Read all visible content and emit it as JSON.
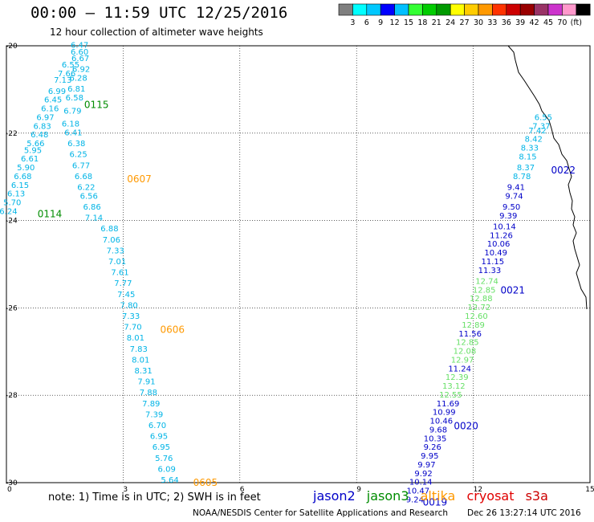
{
  "header": {
    "title": "00:00 – 11:59 UTC 12/25/2016",
    "subtitle": "12 hour collection of altimeter wave heights"
  },
  "colorbar": {
    "colors": [
      "#7f7f7f",
      "#00ffff",
      "#00c8ff",
      "#0000ff",
      "#00bfff",
      "#33ff33",
      "#00cc00",
      "#009900",
      "#ffff00",
      "#ffcc00",
      "#ff9900",
      "#ff3300",
      "#cc0000",
      "#990000",
      "#993366",
      "#cc33cc",
      "#ff99cc",
      "#000000"
    ],
    "labels": [
      "3",
      "6",
      "9",
      "12",
      "15",
      "18",
      "21",
      "24",
      "27",
      "30",
      "33",
      "36",
      "39",
      "42",
      "45",
      "70",
      "(ft)"
    ]
  },
  "axes": {
    "x_ticks": [
      "0",
      "3",
      "6",
      "9",
      "12",
      "15"
    ],
    "y_ticks": [
      "-20",
      "-22",
      "-24",
      "-26",
      "-28",
      "-30"
    ],
    "xlim": [
      0,
      15
    ],
    "ylim": [
      -30,
      -20
    ]
  },
  "satellite_colors": {
    "jason2": "#0000c8",
    "jason3": "#008c00",
    "altika": "#ff9900",
    "cryosat": "#e00000",
    "s3a": "#e00000",
    "swh_light": "#00b4e6",
    "swh_green": "#66e066",
    "swh_blue": "#0000c8"
  },
  "tracks": [
    {
      "id": "0115",
      "sat": "jason3",
      "label_pos": [
        2.0,
        -21.35
      ],
      "points": [
        [
          1.88,
          -20.05,
          "6.47",
          "swh_light"
        ],
        [
          1.88,
          -20.2,
          "6.60",
          "swh_light"
        ],
        [
          1.9,
          -20.35,
          "6.67",
          "swh_light"
        ],
        [
          1.65,
          -20.5,
          "6.55",
          "swh_light"
        ],
        [
          1.92,
          -20.6,
          "6.92",
          "swh_light"
        ],
        [
          1.55,
          -20.7,
          "7.66",
          "swh_light"
        ],
        [
          1.85,
          -20.8,
          "6.28",
          "swh_light"
        ],
        [
          1.45,
          -20.85,
          "7.13",
          "swh_light"
        ],
        [
          1.8,
          -21.05,
          "6.81",
          "swh_light"
        ],
        [
          1.3,
          -21.1,
          "6.99",
          "swh_light"
        ],
        [
          1.75,
          -21.25,
          "6.58",
          "swh_light"
        ],
        [
          1.2,
          -21.3,
          "6.45",
          "swh_light"
        ],
        [
          1.7,
          -21.55,
          "6.79",
          "swh_light"
        ],
        [
          1.12,
          -21.5,
          "6.16",
          "swh_light"
        ],
        [
          1.0,
          -21.7,
          "6.97",
          "swh_light"
        ],
        [
          1.65,
          -21.85,
          "6.18",
          "swh_light"
        ],
        [
          0.92,
          -21.9,
          "6.83",
          "swh_light"
        ],
        [
          1.72,
          -22.05,
          "6.41",
          "swh_light"
        ],
        [
          0.85,
          -22.1,
          "6.48",
          "swh_light"
        ],
        [
          0.75,
          -22.3,
          "5.66",
          "swh_light"
        ],
        [
          1.8,
          -22.3,
          "6.38",
          "swh_light"
        ],
        [
          0.68,
          -22.45,
          "5.95",
          "swh_light"
        ],
        [
          1.85,
          -22.55,
          "6.25",
          "swh_light"
        ],
        [
          0.6,
          -22.65,
          "6.61",
          "swh_light"
        ],
        [
          1.92,
          -22.8,
          "6.77",
          "swh_light"
        ],
        [
          0.5,
          -22.85,
          "5.90",
          "swh_light"
        ],
        [
          1.98,
          -23.05,
          "6.68",
          "swh_light"
        ],
        [
          0.42,
          -23.05,
          "6.68",
          "swh_light"
        ],
        [
          0.35,
          -23.25,
          "6.15",
          "swh_light"
        ],
        [
          2.05,
          -23.3,
          "6.22",
          "swh_light"
        ],
        [
          0.25,
          -23.45,
          "6.13",
          "swh_light"
        ],
        [
          2.12,
          -23.5,
          "6.56",
          "swh_light"
        ],
        [
          0.15,
          -23.65,
          "5.70",
          "swh_light"
        ],
        [
          2.2,
          -23.75,
          "6.86",
          "swh_light"
        ],
        [
          0.05,
          -23.85,
          "6.24",
          "swh_light"
        ],
        [
          2.25,
          -24.0,
          "7.14",
          "swh_light"
        ]
      ]
    },
    {
      "id": "0114",
      "sat": "jason3",
      "label_pos": [
        0.8,
        -23.85
      ],
      "points": []
    },
    {
      "id": "0607",
      "sat": "altika",
      "label_pos": [
        3.1,
        -23.05
      ],
      "points": []
    },
    {
      "id": "0606",
      "sat": "altika",
      "label_pos": [
        3.95,
        -26.5
      ],
      "points": [
        [
          2.65,
          -24.25,
          "6.88",
          "swh_light"
        ],
        [
          2.7,
          -24.5,
          "7.06",
          "swh_light"
        ],
        [
          2.8,
          -24.75,
          "7.33",
          "swh_light"
        ],
        [
          2.85,
          -25.0,
          "7.01",
          "swh_light"
        ],
        [
          2.92,
          -25.25,
          "7.61",
          "swh_light"
        ],
        [
          3.0,
          -25.5,
          "7.77",
          "swh_light"
        ],
        [
          3.08,
          -25.75,
          "7.45",
          "swh_light"
        ],
        [
          3.15,
          -26.0,
          "7.80",
          "swh_light"
        ],
        [
          3.2,
          -26.25,
          "7.33",
          "swh_light"
        ],
        [
          3.25,
          -26.5,
          "7.70",
          "swh_light"
        ],
        [
          3.32,
          -26.75,
          "8.01",
          "swh_light"
        ],
        [
          3.4,
          -27.0,
          "7.83",
          "swh_light"
        ],
        [
          3.45,
          -27.25,
          "8.01",
          "swh_light"
        ],
        [
          3.52,
          -27.5,
          "8.31",
          "swh_light"
        ],
        [
          3.6,
          -27.75,
          "7.91",
          "swh_light"
        ],
        [
          3.65,
          -28.0,
          "7.88",
          "swh_light"
        ],
        [
          3.72,
          -28.25,
          "7.89",
          "swh_light"
        ],
        [
          3.8,
          -28.5,
          "7.39",
          "swh_light"
        ],
        [
          3.88,
          -28.75,
          "6.70",
          "swh_light"
        ],
        [
          3.92,
          -29.0,
          "6.95",
          "swh_light"
        ],
        [
          3.98,
          -29.25,
          "6.95",
          "swh_light"
        ],
        [
          4.05,
          -29.5,
          "5.76",
          "swh_light"
        ],
        [
          4.12,
          -29.75,
          "6.09",
          "swh_light"
        ],
        [
          4.2,
          -30.0,
          "5.64",
          "swh_light"
        ]
      ]
    },
    {
      "id": "0605",
      "sat": "altika",
      "label_pos": [
        4.8,
        -30.0
      ],
      "points": []
    },
    {
      "id": "0022",
      "sat": "jason2",
      "label_pos": [
        14.0,
        -22.85
      ],
      "points": [
        [
          13.8,
          -21.7,
          "6.55",
          "swh_light"
        ],
        [
          13.75,
          -21.9,
          "7.37",
          "swh_light"
        ],
        [
          13.65,
          -22.0,
          "7.42",
          "swh_light"
        ],
        [
          13.55,
          -22.2,
          "8.42",
          "swh_light"
        ],
        [
          13.45,
          -22.4,
          "8.33",
          "swh_light"
        ],
        [
          13.4,
          -22.6,
          "8.15",
          "swh_light"
        ],
        [
          13.35,
          -22.85,
          "8.37",
          "swh_light"
        ],
        [
          13.25,
          -23.05,
          "8.78",
          "swh_light"
        ]
      ]
    },
    {
      "id": "0021",
      "sat": "jason2",
      "label_pos": [
        12.7,
        -25.6
      ],
      "points": [
        [
          13.1,
          -23.3,
          "9.41",
          "swh_blue"
        ],
        [
          13.05,
          -23.5,
          "9.74",
          "swh_blue"
        ],
        [
          12.98,
          -23.75,
          "9.50",
          "swh_blue"
        ],
        [
          12.9,
          -23.95,
          "9.39",
          "swh_blue"
        ],
        [
          12.8,
          -24.2,
          "10.14",
          "swh_blue"
        ],
        [
          12.72,
          -24.4,
          "11.26",
          "swh_blue"
        ],
        [
          12.65,
          -24.6,
          "10.06",
          "swh_blue"
        ],
        [
          12.58,
          -24.8,
          "10.49",
          "swh_blue"
        ],
        [
          12.5,
          -25.0,
          "11.15",
          "swh_blue"
        ],
        [
          12.42,
          -25.2,
          "11.33",
          "swh_blue"
        ],
        [
          12.35,
          -25.45,
          "12.74",
          "swh_green"
        ],
        [
          12.28,
          -25.65,
          "12.85",
          "swh_green"
        ],
        [
          12.2,
          -25.85,
          "12.88",
          "swh_green"
        ],
        [
          12.15,
          -26.05,
          "12.72",
          "swh_green"
        ],
        [
          12.08,
          -26.25,
          "12.60",
          "swh_green"
        ],
        [
          12.0,
          -26.45,
          "12.89",
          "swh_green"
        ],
        [
          11.92,
          -26.65,
          "11.56",
          "swh_blue"
        ],
        [
          11.85,
          -26.85,
          "12.85",
          "swh_green"
        ],
        [
          11.78,
          -27.05,
          "12.08",
          "swh_green"
        ],
        [
          11.72,
          -27.25,
          "12.97",
          "swh_green"
        ],
        [
          11.65,
          -27.45,
          "11.24",
          "swh_blue"
        ],
        [
          11.58,
          -27.65,
          "12.39",
          "swh_green"
        ],
        [
          11.5,
          -27.85,
          "13.12",
          "swh_green"
        ],
        [
          11.42,
          -28.05,
          "12.55",
          "swh_green"
        ],
        [
          11.35,
          -28.25,
          "11.69",
          "swh_blue"
        ]
      ]
    },
    {
      "id": "0020",
      "sat": "jason2",
      "label_pos": [
        11.5,
        -28.7
      ],
      "points": [
        [
          11.25,
          -28.45,
          "10.99",
          "swh_blue"
        ],
        [
          11.18,
          -28.65,
          "10.46",
          "swh_blue"
        ],
        [
          11.1,
          -28.85,
          "9.68",
          "swh_blue"
        ],
        [
          11.02,
          -29.05,
          "10.35",
          "swh_blue"
        ],
        [
          10.95,
          -29.25,
          "9.26",
          "swh_blue"
        ],
        [
          10.88,
          -29.45,
          "9.95",
          "swh_blue"
        ],
        [
          10.8,
          -29.65,
          "9.97",
          "swh_blue"
        ],
        [
          10.72,
          -29.85,
          "9.92",
          "swh_blue"
        ],
        [
          10.65,
          -30.05,
          "10.14",
          "swh_blue"
        ],
        [
          10.58,
          -30.25,
          "10.47",
          "swh_blue"
        ],
        [
          10.5,
          -30.45,
          "9.24",
          "swh_blue"
        ]
      ]
    },
    {
      "id": "0019",
      "sat": "jason2",
      "label_pos": [
        10.7,
        -30.45
      ],
      "points": []
    }
  ],
  "legend": {
    "note": "note: 1) Time is in UTC; 2) SWH is in feet",
    "satellites": [
      {
        "name": "jason2",
        "key": "jason2"
      },
      {
        "name": "jason3",
        "key": "jason3"
      },
      {
        "name": "altika",
        "key": "altika"
      },
      {
        "name": "cryosat",
        "key": "cryosat"
      },
      {
        "name": "s3a",
        "key": "s3a"
      }
    ]
  },
  "footer": {
    "credit": "NOAA/NESDIS Center for Satellite Applications and Research",
    "timestamp": "Dec 26 13:27:14 UTC 2016"
  }
}
